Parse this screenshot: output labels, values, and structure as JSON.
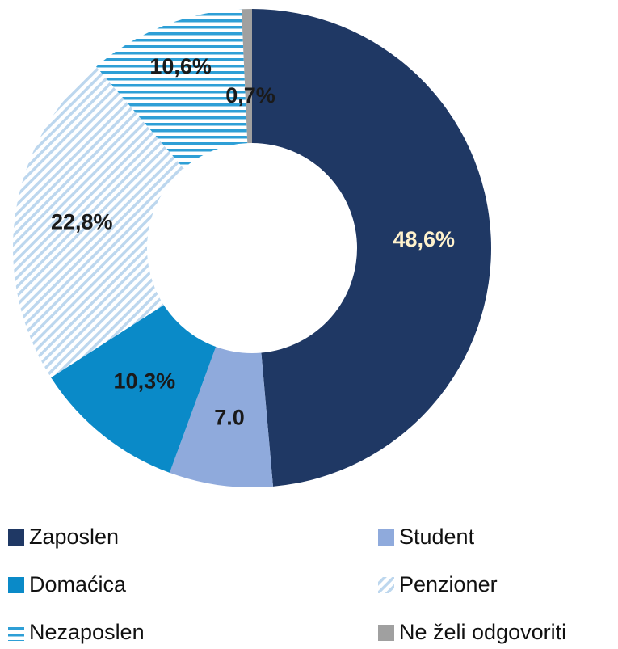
{
  "chart_data": {
    "type": "donut",
    "categories": [
      "Zaposlen",
      "Student",
      "Domaćica",
      "Penzioner",
      "Nezaposlen",
      "Ne želi odgovoriti"
    ],
    "values": [
      48.6,
      7.0,
      10.3,
      22.8,
      10.6,
      0.7
    ],
    "value_labels": [
      "48,6%",
      "7.0",
      "10,3%",
      "22,8%",
      "10,6%",
      "0,7%"
    ],
    "colors": [
      "#1f3864",
      "#8faadc",
      "#0a8ac8",
      "#bdd7ee",
      "#2e9fd6",
      "#a0a0a0"
    ],
    "fills": [
      "solid",
      "solid",
      "solid",
      "diagonal",
      "horizontal",
      "solid"
    ],
    "label_colors": [
      "#fff2cc",
      "#1a1a1a",
      "#1a1a1a",
      "#1a1a1a",
      "#1a1a1a",
      "#1a1a1a"
    ],
    "legend": "bottom"
  }
}
